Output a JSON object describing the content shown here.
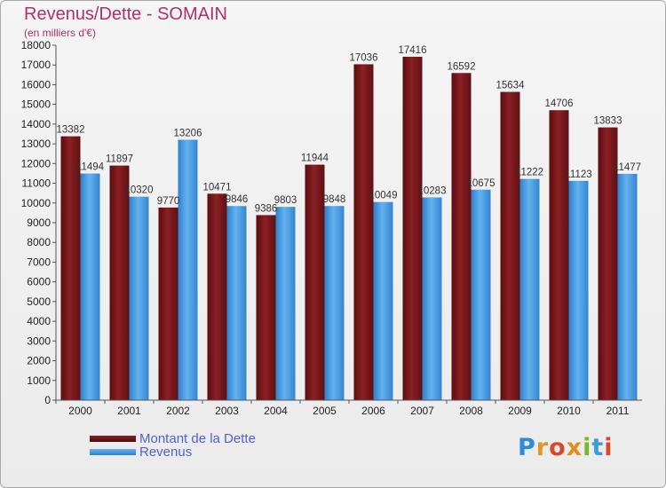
{
  "header": {
    "title": "Revenus/Dette - SOMAIN",
    "subtitle": "(en milliers d'€)"
  },
  "legend": {
    "items": [
      {
        "label": "Montant de la Dette",
        "color": "#6e1416"
      },
      {
        "label": "Revenus",
        "color": "#4a9de0"
      }
    ]
  },
  "logo": {
    "text": "Proxiti",
    "letter_colors": [
      "#2e8bd6",
      "#e0962a",
      "#d7492e",
      "#e08f1f",
      "#78b82a",
      "#3a9be0",
      "#d8482c"
    ]
  },
  "colors": {
    "dette": "#6e1416",
    "revenus": "#4a9de0",
    "accent": "#b0306a",
    "axis": "#555555"
  },
  "chart_data": {
    "type": "bar",
    "categories": [
      "2000",
      "2001",
      "2002",
      "2003",
      "2004",
      "2005",
      "2006",
      "2007",
      "2008",
      "2009",
      "2010",
      "2011"
    ],
    "series": [
      {
        "name": "Montant de la Dette",
        "values": [
          13382,
          11897,
          9770,
          10471,
          9386,
          11944,
          17036,
          17416,
          16592,
          15634,
          14706,
          13833
        ]
      },
      {
        "name": "Revenus",
        "values": [
          11494,
          10320,
          13206,
          9846,
          9803,
          9848,
          10049,
          10283,
          10675,
          11222,
          11123,
          11477
        ]
      }
    ],
    "yticks": [
      0,
      1000,
      2000,
      3000,
      4000,
      5000,
      6000,
      7000,
      8000,
      9000,
      10000,
      11000,
      12000,
      13000,
      14000,
      15000,
      16000,
      17000,
      18000
    ],
    "ylim": [
      0,
      18000
    ],
    "grid": false,
    "legend_position": "bottom-left"
  }
}
